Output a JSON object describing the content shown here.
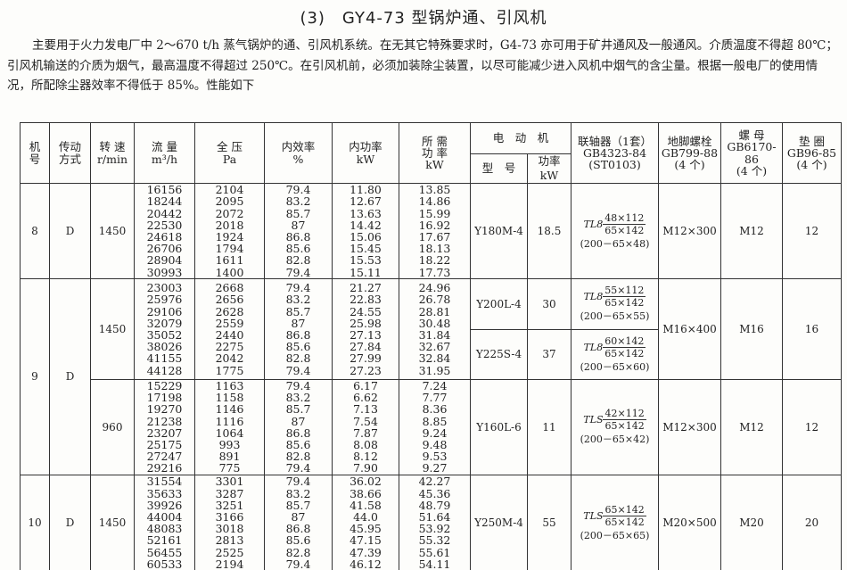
{
  "title": "(3)　GY4-73 型锅炉通、引风机",
  "intro": "主要用于火力发电厂中 2～670 t/h 蒸气锅炉的通、引风机系统。在无其它特殊要求时，G4-73 亦可用于矿井通风及一般通风。介质温度不得超 80℃；引风机输送的介质为烟气，最高温度不得超过 250℃。在引风机前，必须加装除尘装置，以尽可能减少进入风机中烟气的含尘量。根据一般电厂的使用情况，所配除尘器效率不得低于 85%。性能如下",
  "headers": {
    "no": "机\n号",
    "drive": "传动\n方式",
    "speed": "转 速\nr/min",
    "flow": "流 量\nm³/h",
    "pressure": "全 压\nPa",
    "eff": "内效率\n%",
    "power": "内功率\nkW",
    "req": "所 需\n功 率\nkW",
    "motor": "电　动　机",
    "model": "型　号",
    "mpower": "功率 kW",
    "coupling": "联轴器（1套）\nGB4323-84\n(ST0103)",
    "bolt": "地脚螺栓\nGB799-88\n(4 个)",
    "nut": "螺 母\nGB6170-86\n(4 个)",
    "washer": "垫 圈\nGB96-85\n(4 个)"
  },
  "groups": [
    {
      "no": "8",
      "drive": "D",
      "speed": "1450",
      "flow": [
        "16156",
        "18244",
        "20442",
        "22530",
        "24618",
        "26706",
        "28904",
        "30993"
      ],
      "pressure": [
        "2104",
        "2095",
        "2072",
        "2018",
        "1924",
        "1794",
        "1611",
        "1400"
      ],
      "eff": [
        "79.4",
        "83.2",
        "85.7",
        "87",
        "86.8",
        "85.6",
        "82.8",
        "79.4"
      ],
      "power": [
        "11.80",
        "12.67",
        "13.63",
        "14.42",
        "15.06",
        "15.45",
        "15.53",
        "15.11"
      ],
      "req": [
        "13.85",
        "14.86",
        "15.99",
        "16.92",
        "17.67",
        "18.13",
        "18.22",
        "17.73"
      ],
      "motors": [
        {
          "model": "Y180M-4",
          "power": "18.5",
          "c_pre": "TL8",
          "c_num": "48×112",
          "c_den": "65×142",
          "c_par": "(200－65×48)"
        }
      ],
      "bolt": "M12×300",
      "nut": "M12",
      "washer": "12"
    },
    {
      "no": "9",
      "drive": "D",
      "speed": "1450",
      "flow": [
        "23003",
        "25976",
        "29106",
        "32079",
        "35052",
        "38026",
        "41155",
        "44128"
      ],
      "pressure": [
        "2668",
        "2656",
        "2628",
        "2559",
        "2440",
        "2275",
        "2042",
        "1775"
      ],
      "eff": [
        "79.4",
        "83.2",
        "85.7",
        "87",
        "86.8",
        "85.6",
        "82.8",
        "79.4"
      ],
      "power": [
        "21.27",
        "22.83",
        "24.55",
        "25.98",
        "27.13",
        "27.84",
        "27.99",
        "27.23"
      ],
      "req": [
        "24.96",
        "26.78",
        "28.81",
        "30.48",
        "31.84",
        "32.67",
        "32.84",
        "31.95"
      ],
      "motors": [
        {
          "model": "Y200L-4",
          "power": "30",
          "c_pre": "TL8",
          "c_num": "55×112",
          "c_den": "65×142",
          "c_par": "(200－65×55)"
        },
        {
          "model": "Y225S-4",
          "power": "37",
          "c_pre": "TL8",
          "c_num": "60×142",
          "c_den": "65×142",
          "c_par": "(200－65×60)"
        }
      ],
      "bolt": "M16×400",
      "nut": "M16",
      "washer": "16"
    },
    {
      "no": "9",
      "drive": "D",
      "speed": "960",
      "flow": [
        "15229",
        "17198",
        "19270",
        "21238",
        "23207",
        "25175",
        "27247",
        "29216"
      ],
      "pressure": [
        "1163",
        "1158",
        "1146",
        "1116",
        "1064",
        "993",
        "891",
        "775"
      ],
      "eff": [
        "79.4",
        "83.2",
        "85.7",
        "87",
        "86.8",
        "85.6",
        "82.8",
        "79.4"
      ],
      "power": [
        "6.17",
        "6.62",
        "7.13",
        "7.54",
        "7.87",
        "8.08",
        "8.12",
        "7.90"
      ],
      "req": [
        "7.24",
        "7.77",
        "8.36",
        "8.85",
        "9.24",
        "9.48",
        "9.53",
        "9.27"
      ],
      "motors": [
        {
          "model": "Y160L-6",
          "power": "11",
          "c_pre": "TLS",
          "c_num": "42×112",
          "c_den": "65×142",
          "c_par": "(200－65×42)"
        }
      ],
      "bolt": "M12×300",
      "nut": "M12",
      "washer": "12"
    },
    {
      "no": "10",
      "drive": "D",
      "speed": "1450",
      "flow": [
        "31554",
        "35633",
        "39926",
        "44004",
        "48083",
        "52161",
        "56455",
        "60533"
      ],
      "pressure": [
        "3301",
        "3287",
        "3251",
        "3166",
        "3018",
        "2813",
        "2525",
        "2194"
      ],
      "eff": [
        "79.4",
        "83.2",
        "85.7",
        "87",
        "86.8",
        "85.6",
        "82.8",
        "79.4"
      ],
      "power": [
        "36.02",
        "38.66",
        "41.58",
        "44.0",
        "45.95",
        "47.15",
        "47.39",
        "46.12"
      ],
      "req": [
        "42.27",
        "45.36",
        "48.79",
        "51.64",
        "53.92",
        "55.32",
        "55.61",
        "54.11"
      ],
      "motors": [
        {
          "model": "Y250M-4",
          "power": "55",
          "c_pre": "TLS",
          "c_num": "65×142",
          "c_den": "65×142",
          "c_par": "(200－65×65)"
        }
      ],
      "bolt": "M20×500",
      "nut": "M20",
      "washer": "20"
    }
  ]
}
